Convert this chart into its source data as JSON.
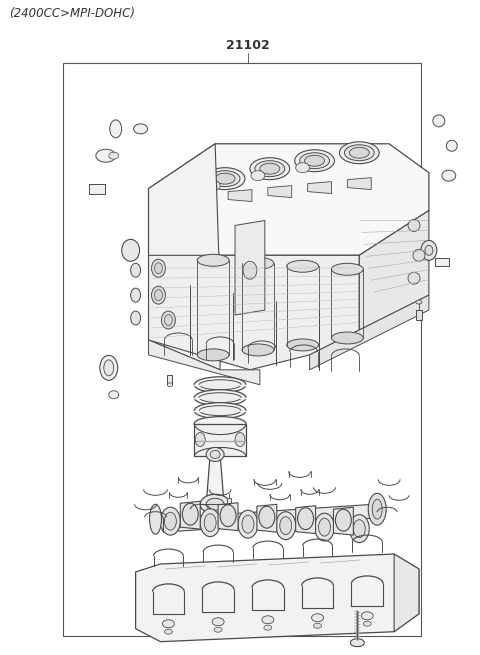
{
  "title_top_left": "(2400CC>MPI-DOHC)",
  "part_number": "21102",
  "bg_color": "#ffffff",
  "line_color": "#4a4a4a",
  "border_color": "#555555",
  "text_color": "#333333",
  "title_fontsize": 8.5,
  "part_number_fontsize": 9,
  "fig_width": 4.8,
  "fig_height": 6.55,
  "dpi": 100
}
